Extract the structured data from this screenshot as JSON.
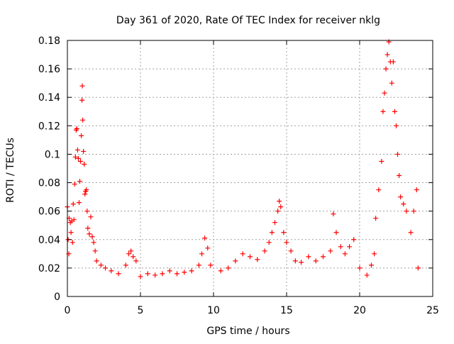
{
  "chart_data": {
    "type": "scatter",
    "title": "Day 361 of 2020, Rate Of TEC Index for receiver nklg",
    "xlabel": "GPS time / hours",
    "ylabel": "ROTI / TECUs",
    "xlim": [
      0,
      25
    ],
    "ylim": [
      0,
      0.18
    ],
    "x_ticks": [
      0,
      5,
      10,
      15,
      20,
      25
    ],
    "x_tick_labels": [
      "0",
      "5",
      "10",
      "15",
      "20",
      "25"
    ],
    "y_ticks": [
      0,
      0.02,
      0.04,
      0.06,
      0.08,
      0.1,
      0.12,
      0.14,
      0.16,
      0.18
    ],
    "y_tick_labels": [
      "0",
      "0.02",
      "0.04",
      "0.06",
      "0.08",
      "0.1",
      "0.12",
      "0.14",
      "0.16",
      "0.18"
    ],
    "grid": true,
    "marker": "+",
    "color": "#ff0000",
    "series": [
      {
        "points": [
          [
            0.0,
            0.063
          ],
          [
            0.05,
            0.04
          ],
          [
            0.1,
            0.03
          ],
          [
            0.12,
            0.055
          ],
          [
            0.2,
            0.052
          ],
          [
            0.25,
            0.045
          ],
          [
            0.3,
            0.053
          ],
          [
            0.35,
            0.038
          ],
          [
            0.4,
            0.065
          ],
          [
            0.45,
            0.054
          ],
          [
            0.5,
            0.079
          ],
          [
            0.55,
            0.098
          ],
          [
            0.6,
            0.117
          ],
          [
            0.65,
            0.118
          ],
          [
            0.7,
            0.103
          ],
          [
            0.75,
            0.097
          ],
          [
            0.8,
            0.066
          ],
          [
            0.85,
            0.081
          ],
          [
            0.9,
            0.095
          ],
          [
            0.95,
            0.113
          ],
          [
            1.0,
            0.138
          ],
          [
            1.02,
            0.148
          ],
          [
            1.05,
            0.124
          ],
          [
            1.1,
            0.102
          ],
          [
            1.15,
            0.093
          ],
          [
            1.2,
            0.072
          ],
          [
            1.25,
            0.074
          ],
          [
            1.3,
            0.075
          ],
          [
            1.35,
            0.06
          ],
          [
            1.4,
            0.048
          ],
          [
            1.5,
            0.044
          ],
          [
            1.6,
            0.056
          ],
          [
            1.7,
            0.042
          ],
          [
            1.8,
            0.038
          ],
          [
            1.9,
            0.032
          ],
          [
            2.0,
            0.025
          ],
          [
            2.3,
            0.022
          ],
          [
            2.6,
            0.02
          ],
          [
            3.0,
            0.018
          ],
          [
            3.5,
            0.016
          ],
          [
            4.0,
            0.022
          ],
          [
            4.2,
            0.03
          ],
          [
            4.35,
            0.032
          ],
          [
            4.5,
            0.028
          ],
          [
            4.7,
            0.025
          ],
          [
            5.0,
            0.014
          ],
          [
            5.5,
            0.016
          ],
          [
            6.0,
            0.015
          ],
          [
            6.5,
            0.016
          ],
          [
            7.0,
            0.018
          ],
          [
            7.5,
            0.016
          ],
          [
            8.0,
            0.017
          ],
          [
            8.5,
            0.018
          ],
          [
            9.0,
            0.022
          ],
          [
            9.2,
            0.03
          ],
          [
            9.4,
            0.041
          ],
          [
            9.6,
            0.034
          ],
          [
            9.8,
            0.022
          ],
          [
            10.5,
            0.018
          ],
          [
            11.0,
            0.02
          ],
          [
            11.5,
            0.025
          ],
          [
            12.0,
            0.03
          ],
          [
            12.5,
            0.028
          ],
          [
            13.0,
            0.026
          ],
          [
            13.5,
            0.032
          ],
          [
            13.8,
            0.038
          ],
          [
            14.0,
            0.045
          ],
          [
            14.2,
            0.052
          ],
          [
            14.4,
            0.06
          ],
          [
            14.5,
            0.067
          ],
          [
            14.6,
            0.063
          ],
          [
            14.8,
            0.045
          ],
          [
            15.0,
            0.038
          ],
          [
            15.3,
            0.032
          ],
          [
            15.6,
            0.025
          ],
          [
            16.0,
            0.024
          ],
          [
            16.5,
            0.028
          ],
          [
            17.0,
            0.025
          ],
          [
            17.5,
            0.028
          ],
          [
            18.0,
            0.032
          ],
          [
            18.2,
            0.058
          ],
          [
            18.4,
            0.045
          ],
          [
            18.7,
            0.035
          ],
          [
            19.0,
            0.03
          ],
          [
            19.3,
            0.035
          ],
          [
            19.6,
            0.04
          ],
          [
            20.0,
            0.02
          ],
          [
            20.5,
            0.015
          ],
          [
            20.8,
            0.022
          ],
          [
            21.0,
            0.03
          ],
          [
            21.1,
            0.055
          ],
          [
            21.3,
            0.075
          ],
          [
            21.5,
            0.095
          ],
          [
            21.6,
            0.13
          ],
          [
            21.7,
            0.143
          ],
          [
            21.8,
            0.16
          ],
          [
            21.9,
            0.17
          ],
          [
            22.0,
            0.179
          ],
          [
            22.1,
            0.165
          ],
          [
            22.2,
            0.15
          ],
          [
            22.3,
            0.165
          ],
          [
            22.4,
            0.13
          ],
          [
            22.5,
            0.12
          ],
          [
            22.6,
            0.1
          ],
          [
            22.7,
            0.085
          ],
          [
            22.8,
            0.07
          ],
          [
            23.0,
            0.065
          ],
          [
            23.2,
            0.06
          ],
          [
            23.5,
            0.045
          ],
          [
            23.7,
            0.06
          ],
          [
            23.9,
            0.075
          ],
          [
            24.0,
            0.02
          ]
        ]
      }
    ]
  }
}
